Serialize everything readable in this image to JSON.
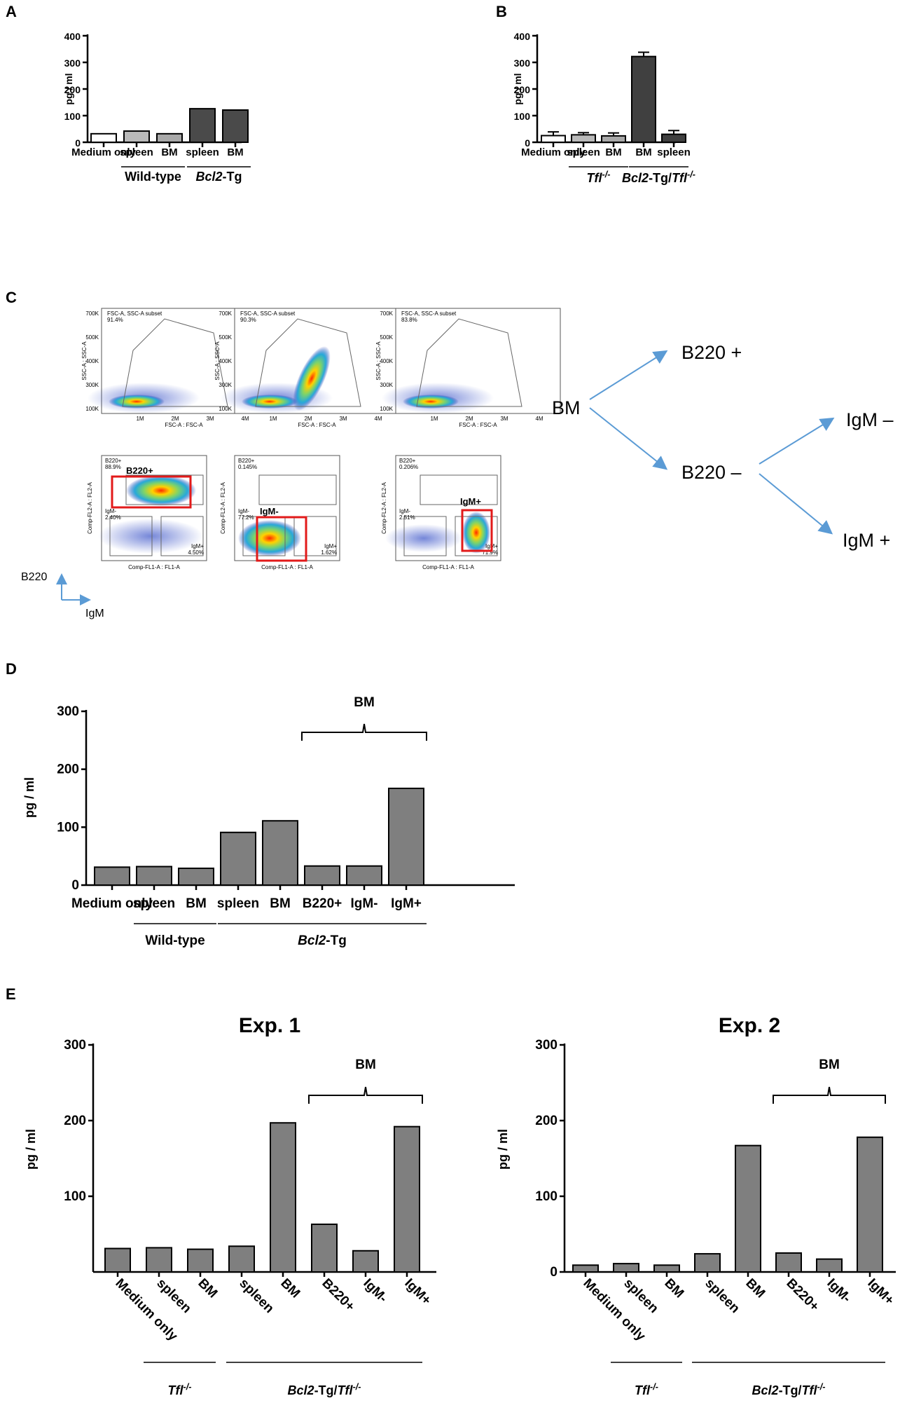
{
  "panels": {
    "A": "A",
    "B": "B",
    "C": "C",
    "D": "D",
    "E": "E"
  },
  "chart_data": [
    {
      "id": "A",
      "type": "bar",
      "categories": [
        "Medium only",
        "spleen",
        "BM",
        "spleen",
        "BM"
      ],
      "values": [
        32,
        42,
        32,
        126,
        121
      ],
      "colors": [
        "#ffffff",
        "#b9b9b9",
        "#a8a8a8",
        "#4a4a4a",
        "#4a4a4a"
      ],
      "ylabel": "pg / ml",
      "ylim": [
        0,
        400
      ],
      "yticks": [
        0,
        100,
        200,
        300,
        400
      ],
      "groups": [
        {
          "label": "Wild-type",
          "from": 1,
          "to": 2
        },
        {
          "label_italic": "Bcl2",
          "label_rest": "-Tg",
          "from": 3,
          "to": 4
        }
      ]
    },
    {
      "id": "B",
      "type": "bar",
      "categories": [
        "Medium only",
        "spleen",
        "BM",
        "BM",
        "spleen"
      ],
      "values": [
        25,
        28,
        24,
        322,
        30
      ],
      "errors": [
        14,
        8,
        11,
        16,
        14
      ],
      "colors": [
        "#ffffff",
        "#b9b9b9",
        "#a8a8a8",
        "#404040",
        "#404040"
      ],
      "ylabel": "pg / ml",
      "ylim": [
        0,
        400
      ],
      "yticks": [
        0,
        100,
        200,
        300,
        400
      ],
      "groups": [
        {
          "label_italic": "Tfl",
          "label_sup": "-/-",
          "from": 1,
          "to": 2
        },
        {
          "label_italic": "Bcl2",
          "label_rest": "-Tg/",
          "label_italic2": "Tfl",
          "label_sup": "-/-",
          "from": 3,
          "to": 4
        }
      ]
    },
    {
      "id": "D",
      "type": "bar",
      "categories": [
        "Medium only",
        "spleen",
        "BM",
        "spleen",
        "BM",
        "B220+",
        "IgM-",
        "IgM+"
      ],
      "values": [
        31,
        32,
        29,
        91,
        111,
        33,
        33,
        167
      ],
      "color": "#7f7f7f",
      "ylabel": "pg / ml",
      "ylim": [
        0,
        300
      ],
      "yticks": [
        0,
        100,
        200,
        300
      ],
      "bracket": {
        "label": "BM",
        "from": 5,
        "to": 7
      },
      "groups": [
        {
          "label": "Wild-type",
          "from": 1,
          "to": 2
        },
        {
          "label_italic": "Bcl2",
          "label_rest": "-Tg",
          "from": 3,
          "to": 7
        }
      ]
    },
    {
      "id": "E1",
      "type": "bar",
      "title": "Exp. 1",
      "categories": [
        "Medium only",
        "spleen",
        "BM",
        "spleen",
        "BM",
        "B220+",
        "IgM-",
        "IgM+"
      ],
      "values": [
        31,
        32,
        30,
        34,
        197,
        63,
        28,
        192
      ],
      "color": "#7f7f7f",
      "ylabel": "pg / ml",
      "ylim": [
        0,
        300
      ],
      "yticks": [
        100,
        200,
        300
      ],
      "bracket": {
        "label": "BM",
        "from": 5,
        "to": 7
      },
      "groups": [
        {
          "label_italic": "Tfl",
          "label_sup": "-/-",
          "from": 1,
          "to": 2
        },
        {
          "label_italic": "Bcl2",
          "label_rest": "-Tg/",
          "label_italic2": "Tfl",
          "label_sup": "-/-",
          "from": 3,
          "to": 7
        }
      ]
    },
    {
      "id": "E2",
      "type": "bar",
      "title": "Exp. 2",
      "categories": [
        "Medium only",
        "spleen",
        "BM",
        "spleen",
        "BM",
        "B220+",
        "IgM-",
        "IgM+"
      ],
      "values": [
        9,
        11,
        9,
        24,
        167,
        25,
        17,
        178
      ],
      "color": "#7f7f7f",
      "ylabel": "pg / ml",
      "ylim": [
        0,
        300
      ],
      "yticks": [
        0,
        100,
        200,
        300
      ],
      "bracket": {
        "label": "BM",
        "from": 5,
        "to": 7
      },
      "groups": [
        {
          "label_italic": "Tfl",
          "label_sup": "-/-",
          "from": 1,
          "to": 2
        },
        {
          "label_italic": "Bcl2",
          "label_rest": "-Tg/",
          "label_italic2": "Tfl",
          "label_sup": "-/-",
          "from": 3,
          "to": 7
        }
      ]
    }
  ],
  "flow_panel": {
    "top_plots": [
      {
        "gate_label": "FSC-A, SSC-A subset",
        "gate_pct": "91.4%"
      },
      {
        "gate_label": "FSC-A, SSC-A subset",
        "gate_pct": "90.3%"
      },
      {
        "gate_label": "FSC-A, SSC-A subset",
        "gate_pct": "83.8%"
      }
    ],
    "top_axis": {
      "x": "FSC-A : FSC-A",
      "y": "SSC-A : SSC-A",
      "yticks": [
        "700K",
        "500K",
        "400K",
        "300K",
        "100K"
      ],
      "xticks": [
        "1M",
        "2M",
        "3M",
        "4M"
      ]
    },
    "bottom_plots": [
      {
        "b220": "B220+",
        "b220_pct": "88.9%",
        "igm_minus": "IgM-",
        "igm_minus_pct": "2.40%",
        "igm_plus": "IgM+",
        "igm_plus_pct": "4.50%",
        "highlight": "B220+"
      },
      {
        "b220": "B220+",
        "b220_pct": "0.145%",
        "igm_minus": "IgM-",
        "igm_minus_pct": "77.2%",
        "igm_plus": "IgM+",
        "igm_plus_pct": "1.62%",
        "highlight": "IgM-"
      },
      {
        "b220": "B220+",
        "b220_pct": "0.206%",
        "igm_minus": "IgM-",
        "igm_minus_pct": "2.51%",
        "igm_plus": "IgM+",
        "igm_plus_pct": "71.9%",
        "highlight": "IgM+"
      }
    ],
    "bottom_axis": {
      "x": "Comp-FL1-A : FL1-A",
      "y": "Comp-FL2-A : FL2-A"
    },
    "axis_key": {
      "y": "B220",
      "x": "IgM"
    },
    "diagram": {
      "root": "BM",
      "b220_plus": "B220 +",
      "b220_minus": "B220 –",
      "igm_minus": "IgM –",
      "igm_plus": "IgM +"
    }
  },
  "colors": {
    "arrow": "#5b9bd5",
    "gate_red": "#e21a1a"
  }
}
